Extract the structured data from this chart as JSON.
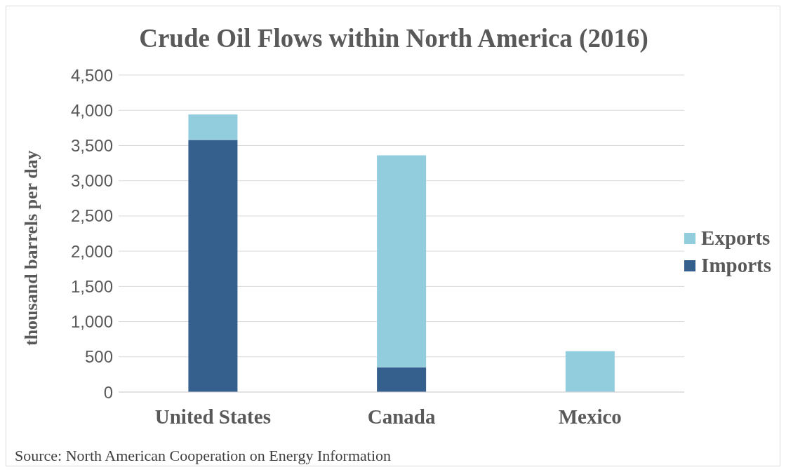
{
  "chart_data": {
    "type": "bar",
    "title": "Crude Oil Flows within North America (2016)",
    "ylabel": "thousand barrels per day",
    "categories": [
      "United States",
      "Canada",
      "Mexico"
    ],
    "stacked": true,
    "series": [
      {
        "name": "Imports",
        "color": "#355f8d",
        "values": [
          3580,
          350,
          0
        ]
      },
      {
        "name": "Exports",
        "color": "#92cddd",
        "values": [
          360,
          3010,
          580
        ]
      }
    ],
    "ylim": [
      0,
      4500
    ],
    "yticks": [
      {
        "value": 0,
        "label": "0"
      },
      {
        "value": 500,
        "label": "500"
      },
      {
        "value": 1000,
        "label": "1,000"
      },
      {
        "value": 1500,
        "label": "1,500"
      },
      {
        "value": 2000,
        "label": "2,000"
      },
      {
        "value": 2500,
        "label": "2,500"
      },
      {
        "value": 3000,
        "label": "3,000"
      },
      {
        "value": 3500,
        "label": "3,500"
      },
      {
        "value": 4000,
        "label": "4,000"
      },
      {
        "value": 4500,
        "label": "4,500"
      }
    ],
    "grid": "y",
    "legend": "right",
    "annotations": [
      "Source: North American Cooperation on Energy Information"
    ]
  }
}
